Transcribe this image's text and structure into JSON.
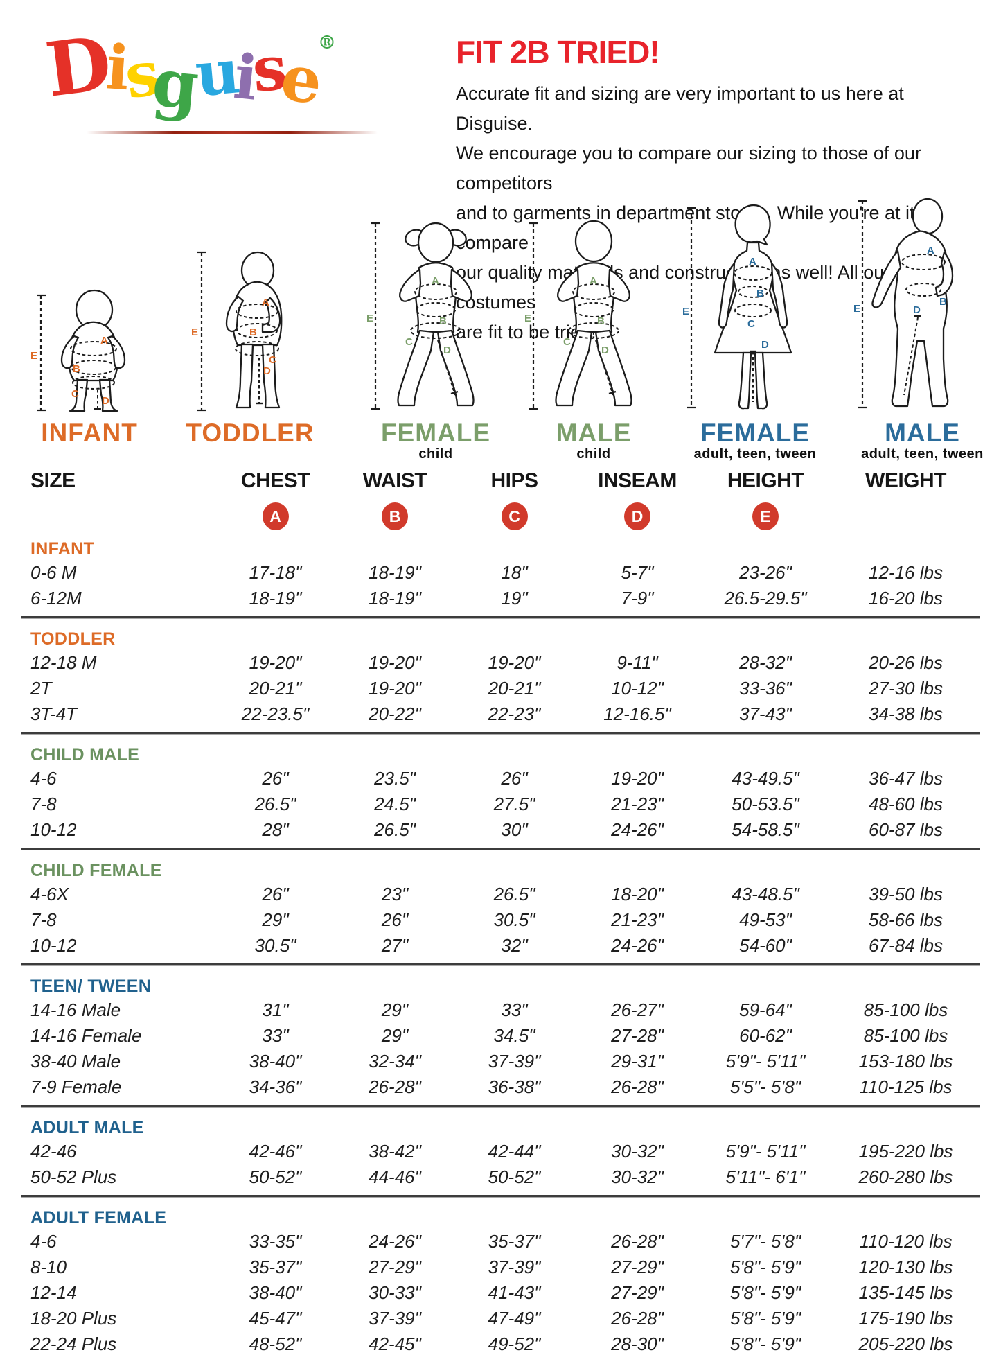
{
  "logo": {
    "letters": [
      {
        "ch": "D",
        "color": "#e53128"
      },
      {
        "ch": "i",
        "color": "#f6921e"
      },
      {
        "ch": "s",
        "color": "#ffd200"
      },
      {
        "ch": "g",
        "color": "#3ea648"
      },
      {
        "ch": "u",
        "color": "#29a8e0"
      },
      {
        "ch": "i",
        "color": "#8e6fae"
      },
      {
        "ch": "s",
        "color": "#e53128"
      },
      {
        "ch": "e",
        "color": "#f6921e"
      },
      {
        "ch": "®",
        "color": "#3ea648"
      }
    ]
  },
  "intro": {
    "title": "FIT 2B TRIED!",
    "lines": [
      "Accurate fit and sizing are very important to us here at Disguise.",
      "We encourage you to compare our sizing to those of our competitors",
      "and to garments in department stores. While you're at it, compare",
      "our quality materials and construction as well! All our costumes",
      "are fit to be tried!"
    ]
  },
  "figures": [
    {
      "label": "INFANT",
      "sublabel": "",
      "color": "#dd6b27",
      "measure_letters": [
        "A",
        "B",
        "C",
        "D",
        "E"
      ]
    },
    {
      "label": "TODDLER",
      "sublabel": "",
      "color": "#dd6b27",
      "measure_letters": [
        "A",
        "B",
        "C",
        "D",
        "E"
      ]
    },
    {
      "label": "FEMALE",
      "sublabel": "child",
      "color": "#7b9e6a",
      "measure_letters": [
        "A",
        "B",
        "C",
        "D",
        "E"
      ]
    },
    {
      "label": "MALE",
      "sublabel": "child",
      "color": "#7b9e6a",
      "measure_letters": [
        "A",
        "B",
        "C",
        "D",
        "E"
      ]
    },
    {
      "label": "FEMALE",
      "sublabel": "adult, teen, tween",
      "color": "#2b6c9b",
      "measure_letters": [
        "A",
        "B",
        "C",
        "D",
        "E"
      ]
    },
    {
      "label": "MALE",
      "sublabel": "adult, teen, tween",
      "color": "#2b6c9b",
      "measure_letters": [
        "A",
        "B",
        "D",
        "E"
      ]
    }
  ],
  "table": {
    "columns": [
      "SIZE",
      "CHEST",
      "WAIST",
      "HIPS",
      "INSEAM",
      "HEIGHT",
      "WEIGHT"
    ],
    "badges": [
      "A",
      "B",
      "C",
      "D",
      "E"
    ],
    "badge_color": "#d13a2b",
    "sections": [
      {
        "name": "INFANT",
        "color": "#dd6b27",
        "rows": [
          [
            "0-6 M",
            "17-18\"",
            "18-19\"",
            "18\"",
            "5-7\"",
            "23-26\"",
            "12-16 lbs"
          ],
          [
            "6-12M",
            "18-19\"",
            "18-19\"",
            "19\"",
            "7-9\"",
            "26.5-29.5\"",
            "16-20 lbs"
          ]
        ]
      },
      {
        "name": "TODDLER",
        "color": "#dd6b27",
        "rows": [
          [
            "12-18 M",
            "19-20\"",
            "19-20\"",
            "19-20\"",
            "9-11\"",
            "28-32\"",
            "20-26 lbs"
          ],
          [
            "2T",
            "20-21\"",
            "19-20\"",
            "20-21\"",
            "10-12\"",
            "33-36\"",
            "27-30 lbs"
          ],
          [
            "3T-4T",
            "22-23.5\"",
            "20-22\"",
            "22-23\"",
            "12-16.5\"",
            "37-43\"",
            "34-38 lbs"
          ]
        ]
      },
      {
        "name": "CHILD MALE",
        "color": "#6b9260",
        "rows": [
          [
            "4-6",
            "26\"",
            "23.5\"",
            "26\"",
            "19-20\"",
            "43-49.5\"",
            "36-47 lbs"
          ],
          [
            "7-8",
            "26.5\"",
            "24.5\"",
            "27.5\"",
            "21-23\"",
            "50-53.5\"",
            "48-60 lbs"
          ],
          [
            "10-12",
            "28\"",
            "26.5\"",
            "30\"",
            "24-26\"",
            "54-58.5\"",
            "60-87 lbs"
          ]
        ]
      },
      {
        "name": "CHILD FEMALE",
        "color": "#6b9260",
        "rows": [
          [
            "4-6X",
            "26\"",
            "23\"",
            "26.5\"",
            "18-20\"",
            "43-48.5\"",
            "39-50 lbs"
          ],
          [
            "7-8",
            "29\"",
            "26\"",
            "30.5\"",
            "21-23\"",
            "49-53\"",
            "58-66 lbs"
          ],
          [
            "10-12",
            "30.5\"",
            "27\"",
            "32\"",
            "24-26\"",
            "54-60\"",
            "67-84 lbs"
          ]
        ]
      },
      {
        "name": "TEEN/ TWEEN",
        "color": "#20618d",
        "rows": [
          [
            "14-16 Male",
            "31\"",
            "29\"",
            "33\"",
            "26-27\"",
            "59-64\"",
            "85-100 lbs"
          ],
          [
            "14-16 Female",
            "33\"",
            "29\"",
            "34.5\"",
            "27-28\"",
            "60-62\"",
            "85-100 lbs"
          ],
          [
            "38-40 Male",
            "38-40\"",
            "32-34\"",
            "37-39\"",
            "29-31\"",
            "5'9\"- 5'11\"",
            "153-180 lbs"
          ],
          [
            "7-9 Female",
            "34-36\"",
            "26-28\"",
            "36-38\"",
            "26-28\"",
            "5'5\"- 5'8\"",
            "110-125 lbs"
          ]
        ]
      },
      {
        "name": "ADULT MALE",
        "color": "#20618d",
        "rows": [
          [
            "42-46",
            "42-46\"",
            "38-42\"",
            "42-44\"",
            "30-32\"",
            "5'9\"- 5'11\"",
            "195-220 lbs"
          ],
          [
            "50-52 Plus",
            "50-52\"",
            "44-46\"",
            "50-52\"",
            "30-32\"",
            "5'11\"- 6'1\"",
            "260-280 lbs"
          ]
        ]
      },
      {
        "name": "ADULT FEMALE",
        "color": "#20618d",
        "rows": [
          [
            "4-6",
            "33-35\"",
            "24-26\"",
            "35-37\"",
            "26-28\"",
            "5'7\"- 5'8\"",
            "110-120 lbs"
          ],
          [
            "8-10",
            "35-37\"",
            "27-29\"",
            "37-39\"",
            "27-29\"",
            "5'8\"- 5'9\"",
            "120-130 lbs"
          ],
          [
            "12-14",
            "38-40\"",
            "30-33\"",
            "41-43\"",
            "27-29\"",
            "5'8\"- 5'9\"",
            "135-145 lbs"
          ],
          [
            "18-20 Plus",
            "45-47\"",
            "37-39\"",
            "47-49\"",
            "26-28\"",
            "5'8\"- 5'9\"",
            "175-190 lbs"
          ],
          [
            "22-24 Plus",
            "48-52\"",
            "42-45\"",
            "49-52\"",
            "28-30\"",
            "5'8\"- 5'9\"",
            "205-220 lbs"
          ]
        ]
      }
    ]
  }
}
